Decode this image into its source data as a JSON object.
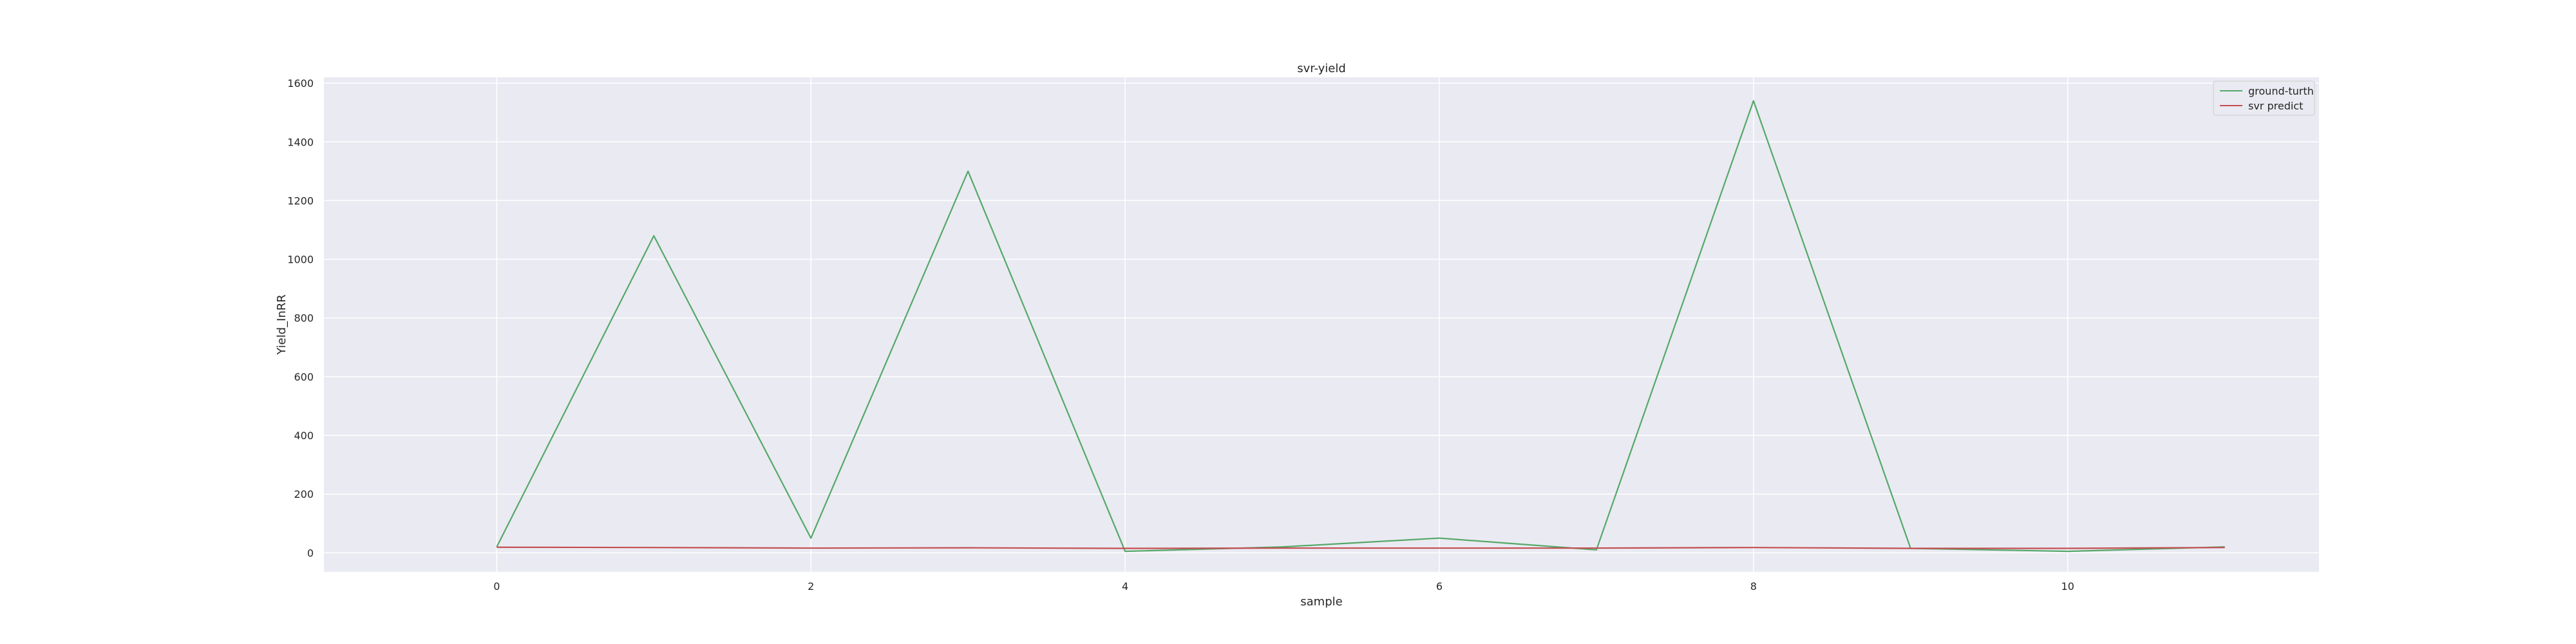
{
  "chart_data": {
    "type": "line",
    "title": "svr-yield",
    "xlabel": "sample",
    "ylabel": "Yield_InRR",
    "xlim": [
      -1.1,
      11.6
    ],
    "ylim": [
      -65,
      1620
    ],
    "x_ticks": [
      0,
      2,
      4,
      6,
      8,
      10
    ],
    "y_ticks": [
      0,
      200,
      400,
      600,
      800,
      1000,
      1200,
      1400,
      1600
    ],
    "grid": true,
    "background": "#eaeaf2",
    "legend_position": "top-right",
    "x": [
      0,
      1,
      2,
      3,
      4,
      5,
      6,
      7,
      8,
      9,
      10,
      11
    ],
    "series": [
      {
        "name": "ground-turth",
        "color": "#55a868",
        "values": [
          20,
          1080,
          50,
          1300,
          5,
          20,
          50,
          10,
          1540,
          15,
          5,
          20
        ]
      },
      {
        "name": "svr predict",
        "color": "#c44e52",
        "values": [
          19,
          18,
          16,
          17,
          15,
          16,
          16,
          16,
          18,
          15,
          15,
          18
        ]
      }
    ]
  }
}
